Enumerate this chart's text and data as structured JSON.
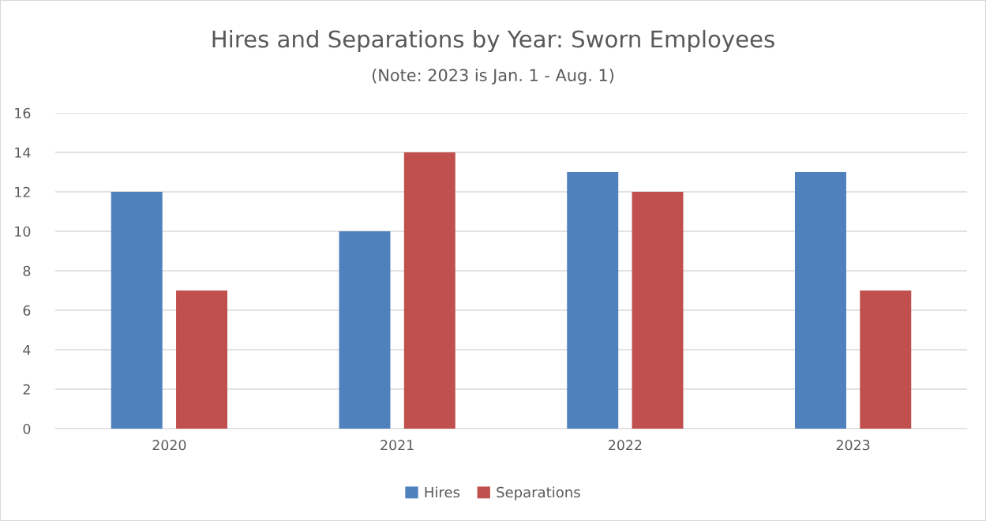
{
  "chart_data": {
    "type": "bar",
    "title": "Hires and Separations by Year: Sworn Employees",
    "subtitle": "(Note: 2023 is Jan. 1 - Aug. 1)",
    "categories": [
      "2020",
      "2021",
      "2022",
      "2023"
    ],
    "series": [
      {
        "name": "Hires",
        "color": "#4f81bd",
        "values": [
          12,
          10,
          13,
          13
        ]
      },
      {
        "name": "Separations",
        "color": "#c0504d",
        "values": [
          7,
          14,
          12,
          7
        ]
      }
    ],
    "ylim": [
      0,
      16
    ],
    "yticks": [
      0,
      2,
      4,
      6,
      8,
      10,
      12,
      14,
      16
    ],
    "grid": "y",
    "legend": "bottom"
  }
}
